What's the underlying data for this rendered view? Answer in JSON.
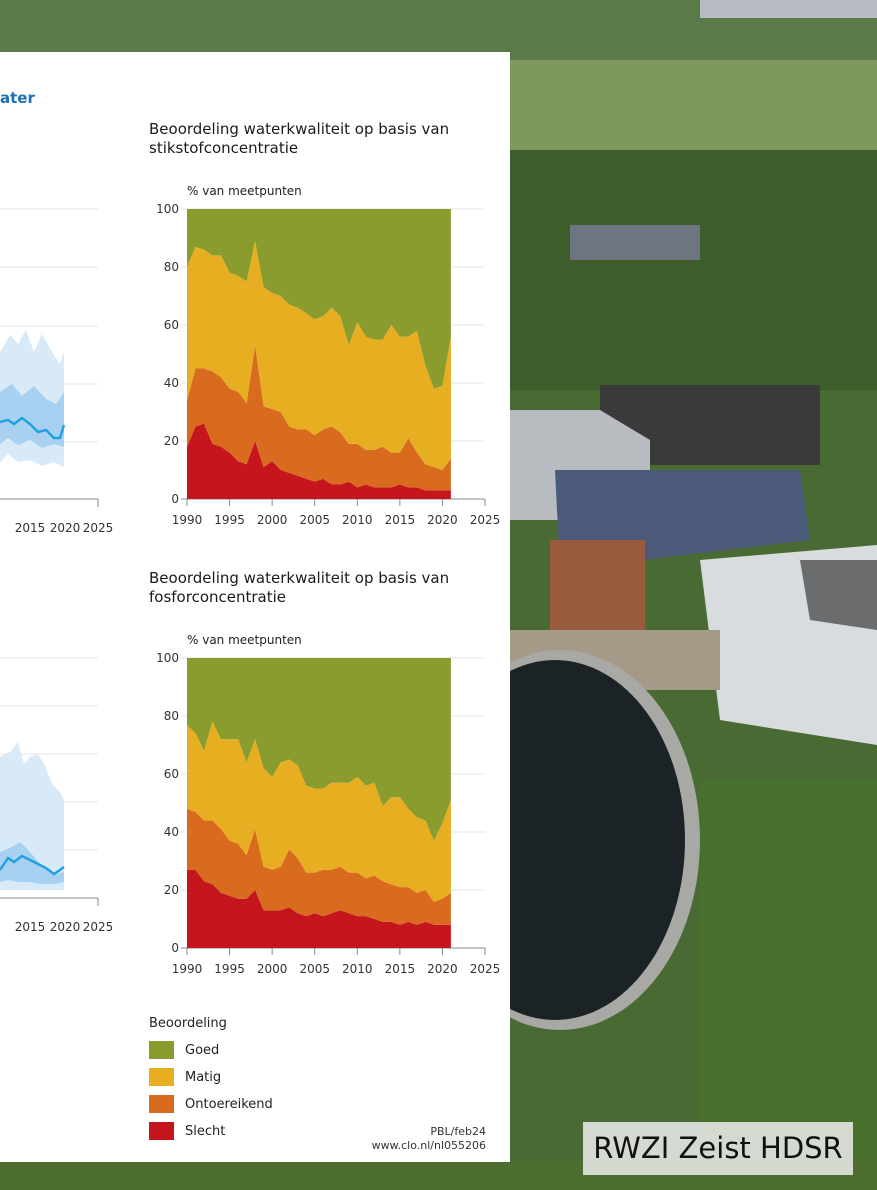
{
  "header_fragment": "ater",
  "panel_left": {
    "x_tick_labels": [
      "2015",
      "2020",
      "2025"
    ]
  },
  "chart_data": [
    {
      "type": "area",
      "title": "Beoordeling waterkwaliteit op basis van stikstofconcentratie",
      "title_lines": [
        "Beoordeling waterkwaliteit op basis van",
        "stikstofconcentratie"
      ],
      "ylabel": "% van meetpunten",
      "stacked": true,
      "ylim": [
        0,
        100
      ],
      "xlim": [
        1990,
        2025
      ],
      "x_ticks": [
        1990,
        1995,
        2000,
        2005,
        2010,
        2015,
        2020,
        2025
      ],
      "y_ticks": [
        0,
        20,
        40,
        60,
        80,
        100
      ],
      "x": [
        1990,
        1991,
        1992,
        1993,
        1994,
        1995,
        1996,
        1997,
        1998,
        1999,
        2000,
        2001,
        2002,
        2003,
        2004,
        2005,
        2006,
        2007,
        2008,
        2009,
        2010,
        2011,
        2012,
        2013,
        2014,
        2015,
        2016,
        2017,
        2018,
        2019,
        2020,
        2021
      ],
      "series": [
        {
          "name": "Slecht",
          "color": "#c5161d",
          "values": [
            18,
            25,
            26,
            19,
            18,
            16,
            13,
            12,
            20,
            11,
            13,
            10,
            9,
            8,
            7,
            6,
            7,
            5,
            5,
            6,
            4,
            5,
            4,
            4,
            4,
            5,
            4,
            4,
            3,
            3,
            3,
            3
          ]
        },
        {
          "name": "Ontoereikend",
          "color": "#d96b1e",
          "values": [
            16,
            20,
            19,
            25,
            24,
            22,
            24,
            21,
            33,
            21,
            18,
            20,
            16,
            16,
            17,
            16,
            17,
            20,
            18,
            13,
            15,
            12,
            13,
            14,
            12,
            11,
            17,
            12,
            9,
            8,
            7,
            11
          ]
        },
        {
          "name": "Matig",
          "color": "#e8ae22",
          "values": [
            46,
            42,
            41,
            40,
            42,
            40,
            40,
            42,
            36,
            41,
            40,
            40,
            42,
            42,
            40,
            40,
            39,
            41,
            40,
            34,
            42,
            39,
            38,
            37,
            44,
            40,
            35,
            42,
            34,
            27,
            29,
            42
          ]
        },
        {
          "name": "Goed",
          "color": "#8a9c2d",
          "values": [
            20,
            13,
            14,
            16,
            16,
            22,
            23,
            25,
            11,
            27,
            29,
            30,
            33,
            34,
            36,
            38,
            37,
            34,
            37,
            47,
            39,
            44,
            45,
            45,
            40,
            44,
            44,
            42,
            54,
            62,
            61,
            44
          ]
        }
      ]
    },
    {
      "type": "area",
      "title": "Beoordeling waterkwaliteit op basis van fosforconcentratie",
      "title_lines": [
        "Beoordeling waterkwaliteit op basis van",
        "fosforconcentratie"
      ],
      "ylabel": "% van meetpunten",
      "stacked": true,
      "ylim": [
        0,
        100
      ],
      "xlim": [
        1990,
        2025
      ],
      "x_ticks": [
        1990,
        1995,
        2000,
        2005,
        2010,
        2015,
        2020,
        2025
      ],
      "y_ticks": [
        0,
        20,
        40,
        60,
        80,
        100
      ],
      "x": [
        1990,
        1991,
        1992,
        1993,
        1994,
        1995,
        1996,
        1997,
        1998,
        1999,
        2000,
        2001,
        2002,
        2003,
        2004,
        2005,
        2006,
        2007,
        2008,
        2009,
        2010,
        2011,
        2012,
        2013,
        2014,
        2015,
        2016,
        2017,
        2018,
        2019,
        2020,
        2021
      ],
      "series": [
        {
          "name": "Slecht",
          "color": "#c5161d",
          "values": [
            27,
            27,
            23,
            22,
            19,
            18,
            17,
            17,
            20,
            13,
            13,
            13,
            14,
            12,
            11,
            12,
            11,
            12,
            13,
            12,
            11,
            11,
            10,
            9,
            9,
            8,
            9,
            8,
            9,
            8,
            8,
            8
          ]
        },
        {
          "name": "Ontoereikend",
          "color": "#d96b1e",
          "values": [
            21,
            20,
            21,
            22,
            22,
            19,
            19,
            15,
            21,
            15,
            14,
            15,
            20,
            19,
            15,
            14,
            16,
            15,
            15,
            14,
            15,
            13,
            15,
            14,
            13,
            13,
            12,
            11,
            11,
            8,
            9,
            11
          ]
        },
        {
          "name": "Matig",
          "color": "#e8ae22",
          "values": [
            29,
            27,
            24,
            34,
            31,
            35,
            36,
            32,
            31,
            34,
            32,
            36,
            31,
            32,
            30,
            29,
            28,
            30,
            29,
            31,
            33,
            32,
            32,
            26,
            30,
            31,
            27,
            26,
            24,
            21,
            26,
            32
          ]
        },
        {
          "name": "Goed",
          "color": "#8a9c2d",
          "values": [
            23,
            26,
            32,
            22,
            28,
            28,
            28,
            36,
            28,
            38,
            41,
            36,
            35,
            37,
            44,
            45,
            45,
            43,
            43,
            43,
            41,
            44,
            43,
            51,
            48,
            48,
            52,
            55,
            56,
            63,
            57,
            49
          ]
        }
      ]
    }
  ],
  "legend": {
    "title": "Beoordeling",
    "items": [
      {
        "label": "Goed",
        "color": "#8a9c2d"
      },
      {
        "label": "Matig",
        "color": "#e8ae22"
      },
      {
        "label": "Ontoereikend",
        "color": "#d96b1e"
      },
      {
        "label": "Slecht",
        "color": "#c5161d"
      }
    ]
  },
  "source": {
    "line1": "PBL/feb24",
    "line2": "www.clo.nl/nl055206"
  },
  "photo_caption": "RWZI Zeist HDSR"
}
